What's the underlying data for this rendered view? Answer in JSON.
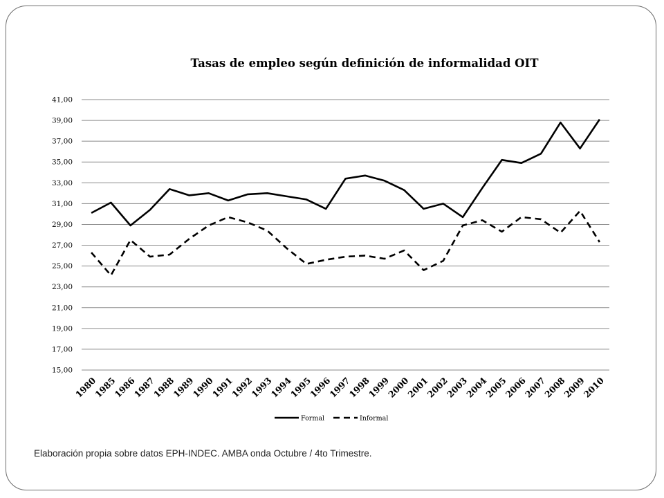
{
  "chart_data": {
    "type": "line",
    "title": "Tasas de empleo según definición de informalidad OIT",
    "xlabel": "",
    "ylabel": "",
    "ylim": [
      15,
      41
    ],
    "yticks": [
      "15,00",
      "17,00",
      "19,00",
      "21,00",
      "23,00",
      "25,00",
      "27,00",
      "29,00",
      "31,00",
      "33,00",
      "35,00",
      "37,00",
      "39,00",
      "41,00"
    ],
    "grid": true,
    "legend_position": "bottom",
    "categories": [
      "1980",
      "1985",
      "1986",
      "1987",
      "1988",
      "1989",
      "1990",
      "1991",
      "1992",
      "1993",
      "1994",
      "1995",
      "1996",
      "1997",
      "1998",
      "1999",
      "2000",
      "2001",
      "2002",
      "2003",
      "2004",
      "2005",
      "2006",
      "2007",
      "2008",
      "2009",
      "2010"
    ],
    "series": [
      {
        "name": "Formal",
        "style": "solid",
        "color": "#000000",
        "values": [
          30.1,
          31.1,
          28.9,
          30.4,
          32.4,
          31.8,
          32.0,
          31.3,
          31.9,
          32.0,
          31.7,
          31.4,
          30.5,
          33.4,
          33.7,
          33.2,
          32.3,
          30.5,
          31.0,
          29.7,
          32.5,
          35.2,
          34.9,
          35.8,
          38.8,
          36.3,
          39.1
        ]
      },
      {
        "name": "Informal",
        "style": "dashed",
        "color": "#000000",
        "values": [
          26.3,
          24.1,
          27.5,
          25.9,
          26.1,
          27.6,
          28.9,
          29.7,
          29.2,
          28.4,
          26.7,
          25.2,
          25.6,
          25.9,
          26.0,
          25.7,
          26.5,
          24.6,
          25.5,
          28.9,
          29.4,
          28.3,
          29.7,
          29.5,
          28.2,
          30.3,
          27.3
        ]
      }
    ]
  },
  "source_note": "Elaboración propia sobre datos EPH-INDEC. AMBA onda Octubre / 4to Trimestre."
}
